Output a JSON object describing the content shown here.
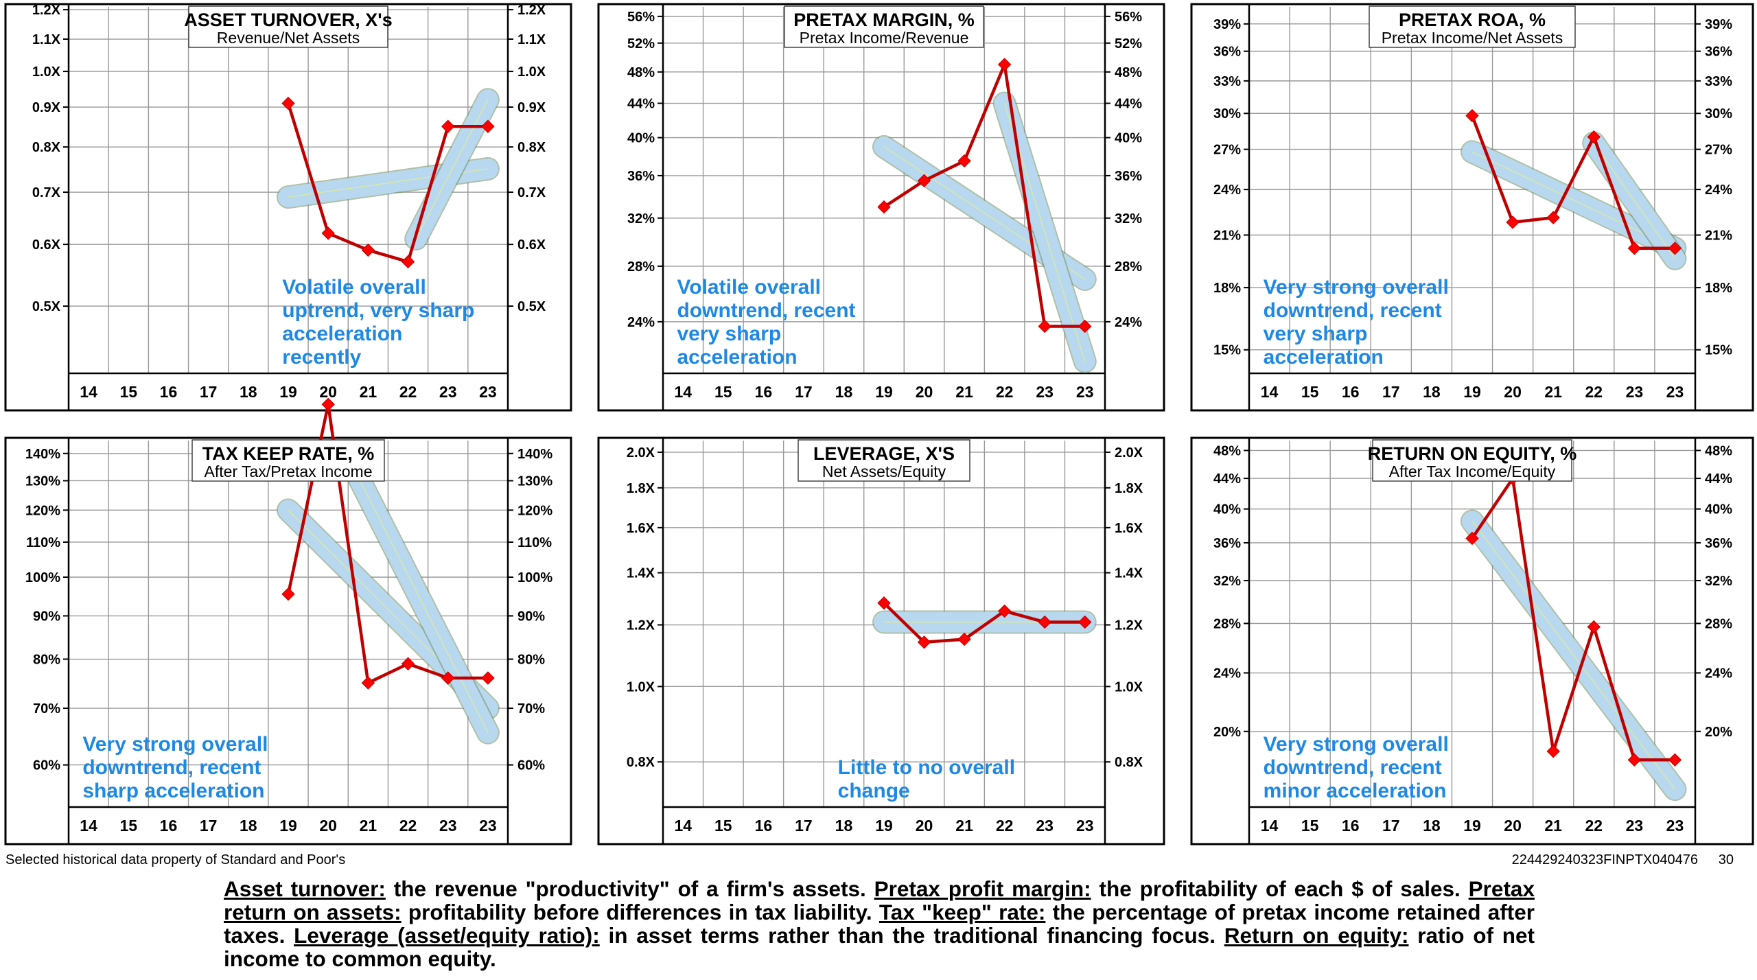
{
  "footer": {
    "source_note": "Selected historical data property of Standard and Poor's",
    "doc_id": "224429240323FINPTX040476",
    "page_number": "30"
  },
  "definitions": {
    "asset_turnover_term": "Asset turnover:",
    "asset_turnover_text": " the revenue \"productivity\" of a firm's assets. ",
    "pretax_margin_term": "Pretax profit margin:",
    "pretax_margin_text": " the profitability of each $ of sales. ",
    "pretax_roa_term": "Pretax return on assets:",
    "pretax_roa_text": " profitability before differences in tax liability. ",
    "tax_keep_term": "Tax \"keep\" rate:",
    "tax_keep_text": " the percentage of pretax income retained after taxes. ",
    "leverage_term": "Leverage (asset/equity ratio):",
    "leverage_text": " in asset terms rather than the traditional financing focus. ",
    "roe_term": "Return on equity:",
    "roe_text": " ratio of net income to common equity."
  },
  "colors": {
    "series": "#c00000",
    "marker": "#ff0000",
    "trend_band": "#b8d8f0",
    "annotation": "#1e88e5",
    "grid": "#999999"
  },
  "chart_data": [
    {
      "id": "asset-turnover",
      "type": "line",
      "scale": "log",
      "title": "ASSET TURNOVER, X's",
      "subtitle": "Revenue/Net Assets",
      "categories": [
        "14",
        "15",
        "16",
        "17",
        "18",
        "19",
        "20",
        "21",
        "22",
        "23",
        "23"
      ],
      "ylim": [
        0.41,
        1.21
      ],
      "ticks": [
        1.2,
        1.1,
        1.0,
        0.9,
        0.8,
        0.7,
        0.6,
        0.5
      ],
      "tick_labels": [
        "1.2X",
        "1.1X",
        "1.0X",
        "0.9X",
        "0.8X",
        "0.7X",
        "0.6X",
        "0.5X"
      ],
      "values": [
        null,
        null,
        null,
        null,
        null,
        0.91,
        0.62,
        0.59,
        0.57,
        0.85,
        0.85
      ],
      "trend_bands": [
        [
          5,
          0.69,
          10,
          0.75
        ],
        [
          8.2,
          0.61,
          10,
          0.92
        ]
      ],
      "annotation": [
        "Volatile overall",
        "uptrend, very sharp",
        "acceleration",
        "recently"
      ]
    },
    {
      "id": "pretax-margin",
      "type": "line",
      "scale": "log",
      "title": "PRETAX MARGIN, %",
      "subtitle": "Pretax Income/Revenue",
      "categories": [
        "14",
        "15",
        "16",
        "17",
        "18",
        "19",
        "20",
        "21",
        "22",
        "23",
        "23"
      ],
      "ylim": [
        0.208,
        0.575
      ],
      "ticks": [
        0.56,
        0.52,
        0.48,
        0.44,
        0.4,
        0.36,
        0.32,
        0.28,
        0.24
      ],
      "tick_labels": [
        "56%",
        "52%",
        "48%",
        "44%",
        "40%",
        "36%",
        "32%",
        "28%",
        "24%"
      ],
      "values": [
        null,
        null,
        null,
        null,
        null,
        0.33,
        0.355,
        0.375,
        0.49,
        0.237,
        0.237
      ],
      "trend_bands": [
        [
          5,
          0.39,
          10,
          0.27
        ],
        [
          8,
          0.44,
          10,
          0.215
        ]
      ],
      "annotation": [
        "Volatile overall",
        "downtrend, recent",
        "very sharp",
        "acceleration"
      ]
    },
    {
      "id": "pretax-roa",
      "type": "line",
      "scale": "log",
      "title": "PRETAX ROA, %",
      "subtitle": "Pretax Income/Net Assets",
      "categories": [
        "14",
        "15",
        "16",
        "17",
        "18",
        "19",
        "20",
        "21",
        "22",
        "23",
        "23"
      ],
      "ylim": [
        0.14,
        0.41
      ],
      "ticks": [
        0.39,
        0.36,
        0.33,
        0.3,
        0.27,
        0.24,
        0.21,
        0.18,
        0.15
      ],
      "tick_labels": [
        "39%",
        "36%",
        "33%",
        "30%",
        "27%",
        "24%",
        "21%",
        "18%",
        "15%"
      ],
      "values": [
        null,
        null,
        null,
        null,
        null,
        0.298,
        0.218,
        0.221,
        0.28,
        0.202,
        0.202
      ],
      "trend_bands": [
        [
          5,
          0.268,
          10,
          0.202
        ],
        [
          8,
          0.275,
          10,
          0.196
        ]
      ],
      "annotation": [
        "Very strong overall",
        "downtrend, recent",
        "very sharp",
        "acceleration"
      ]
    },
    {
      "id": "tax-keep-rate",
      "type": "line",
      "scale": "log",
      "title": "TAX KEEP RATE, %",
      "subtitle": "After Tax/Pretax Income",
      "categories": [
        "14",
        "15",
        "16",
        "17",
        "18",
        "19",
        "20",
        "21",
        "22",
        "23",
        "23"
      ],
      "ylim": [
        0.535,
        1.45
      ],
      "ticks": [
        1.4,
        1.3,
        1.2,
        1.1,
        1.0,
        0.9,
        0.8,
        0.7,
        0.6
      ],
      "tick_labels": [
        "140%",
        "130%",
        "120%",
        "110%",
        "100%",
        "90%",
        "80%",
        "70%",
        "60%"
      ],
      "values": [
        null,
        null,
        null,
        null,
        null,
        0.955,
        1.6,
        0.75,
        0.79,
        0.76,
        0.76
      ],
      "trend_bands": [
        [
          5,
          1.2,
          10,
          0.7
        ],
        [
          6.8,
          1.3,
          10,
          0.655
        ]
      ],
      "annotation": [
        "Very strong overall",
        "downtrend, recent",
        "sharp acceleration"
      ]
    },
    {
      "id": "leverage",
      "type": "line",
      "scale": "log",
      "title": "LEVERAGE, X'S",
      "subtitle": "Net Assets/Equity",
      "categories": [
        "14",
        "15",
        "16",
        "17",
        "18",
        "19",
        "20",
        "21",
        "22",
        "23",
        "23"
      ],
      "ylim": [
        0.7,
        2.07
      ],
      "ticks": [
        2.0,
        1.8,
        1.6,
        1.4,
        1.2,
        1.0,
        0.8
      ],
      "tick_labels": [
        "2.0X",
        "1.8X",
        "1.6X",
        "1.4X",
        "1.2X",
        "1.0X",
        "0.8X"
      ],
      "values": [
        null,
        null,
        null,
        null,
        null,
        1.28,
        1.14,
        1.15,
        1.25,
        1.21,
        1.21
      ],
      "trend_bands": [
        [
          5,
          1.21,
          10,
          1.21
        ]
      ],
      "annotation": [
        "Little to no overall",
        "change"
      ]
    },
    {
      "id": "return-on-equity",
      "type": "line",
      "scale": "log",
      "title": "RETURN ON EQUITY, %",
      "subtitle": "After Tax Income/Equity",
      "categories": [
        "14",
        "15",
        "16",
        "17",
        "18",
        "19",
        "20",
        "21",
        "22",
        "23",
        "23"
      ],
      "ylim": [
        0.158,
        0.495
      ],
      "ticks": [
        0.48,
        0.44,
        0.4,
        0.36,
        0.32,
        0.28,
        0.24,
        0.2
      ],
      "tick_labels": [
        "48%",
        "44%",
        "40%",
        "36%",
        "32%",
        "28%",
        "24%",
        "20%"
      ],
      "values": [
        null,
        null,
        null,
        null,
        null,
        0.365,
        0.44,
        0.188,
        0.277,
        0.183,
        0.183
      ],
      "trend_bands": [
        [
          5,
          0.385,
          10,
          0.167
        ]
      ],
      "annotation": [
        "Very strong overall",
        "downtrend, recent",
        "minor acceleration"
      ]
    }
  ]
}
